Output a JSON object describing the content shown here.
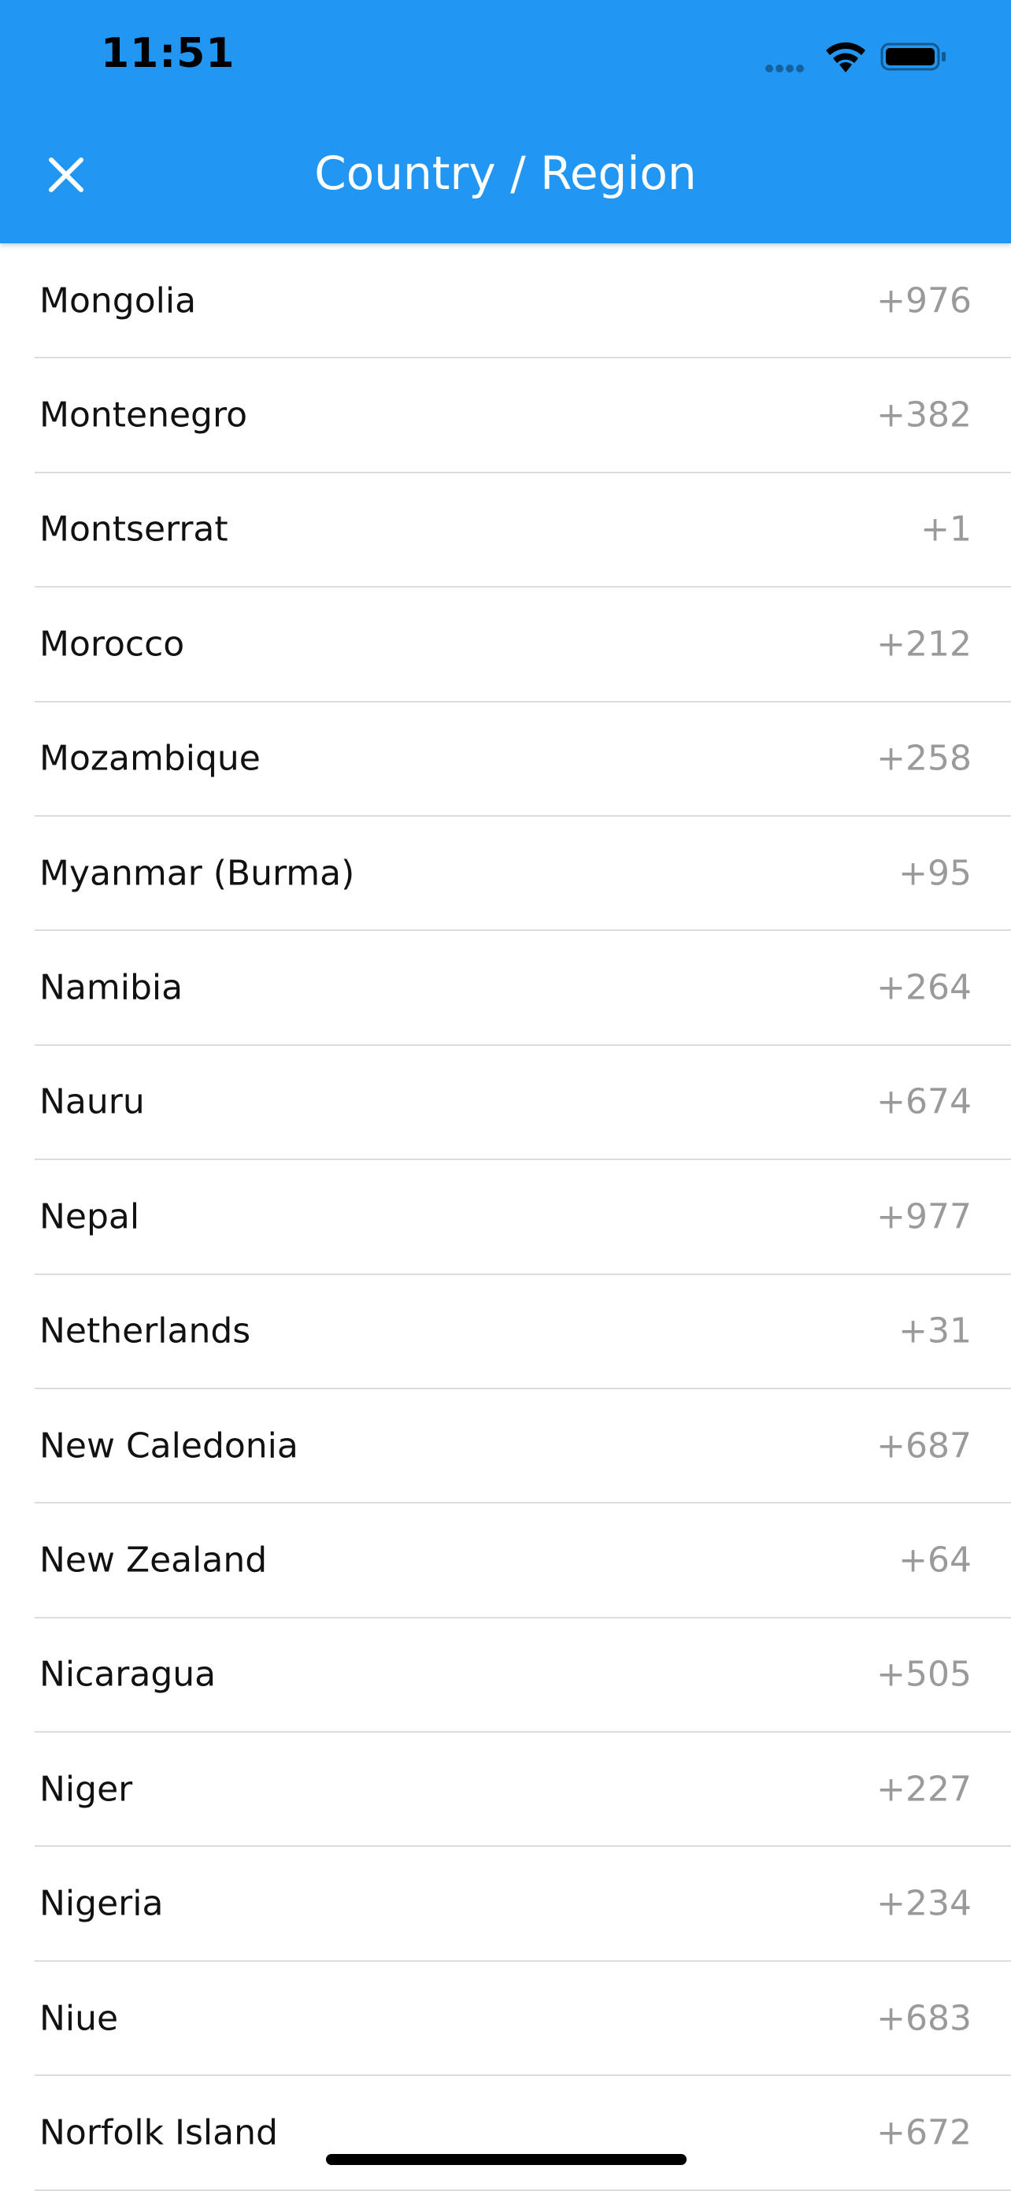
{
  "status_bar": {
    "time": "11:51",
    "icons": [
      "cellular-signal-icon",
      "wifi-icon",
      "battery-icon"
    ]
  },
  "header": {
    "title": "Country / Region",
    "close_icon": "close-icon",
    "background_color": "#2196F3"
  },
  "countries": [
    {
      "name": "Mongolia",
      "code": "+976"
    },
    {
      "name": "Montenegro",
      "code": "+382"
    },
    {
      "name": "Montserrat",
      "code": "+1"
    },
    {
      "name": "Morocco",
      "code": "+212"
    },
    {
      "name": "Mozambique",
      "code": "+258"
    },
    {
      "name": "Myanmar (Burma)",
      "code": "+95"
    },
    {
      "name": "Namibia",
      "code": "+264"
    },
    {
      "name": "Nauru",
      "code": "+674"
    },
    {
      "name": "Nepal",
      "code": "+977"
    },
    {
      "name": "Netherlands",
      "code": "+31"
    },
    {
      "name": "New Caledonia",
      "code": "+687"
    },
    {
      "name": "New Zealand",
      "code": "+64"
    },
    {
      "name": "Nicaragua",
      "code": "+505"
    },
    {
      "name": "Niger",
      "code": "+227"
    },
    {
      "name": "Nigeria",
      "code": "+234"
    },
    {
      "name": "Niue",
      "code": "+683"
    },
    {
      "name": "Norfolk Island",
      "code": "+672"
    }
  ]
}
